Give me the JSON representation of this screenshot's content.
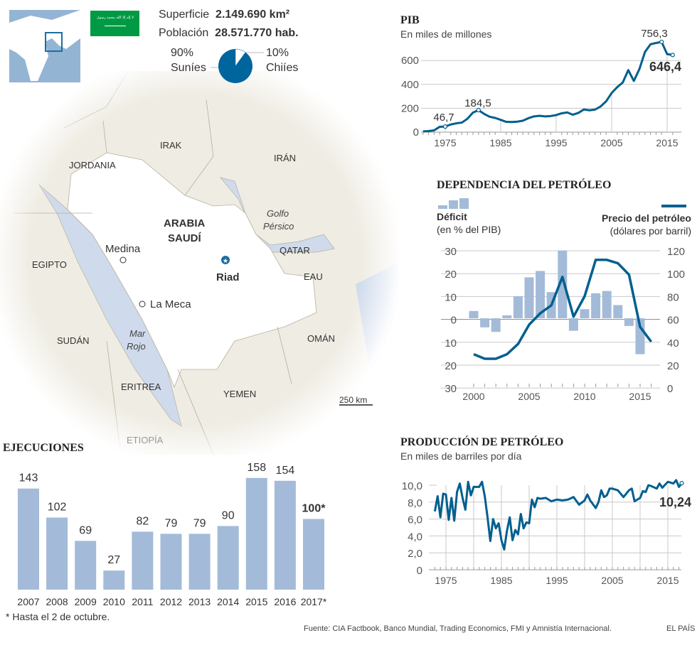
{
  "facts": {
    "area_label": "Superficie",
    "area_value": "2.149.690 km²",
    "population_label": "Población",
    "population_value": "28.571.770 hab.",
    "sunni_pct": "90%",
    "sunni_label": "Suníes",
    "shia_pct": "10%",
    "shia_label": "Chiíes",
    "religion_split": {
      "sunni": 90,
      "shia": 10
    }
  },
  "flag": {
    "color": "#009a44",
    "inscription": "لا إله إلا الله محمد رسول الله"
  },
  "map": {
    "country": "ARABIA\nSAUDÍ",
    "country_line1": "ARABIA",
    "country_line2": "SAUDÍ",
    "capital": "Riad",
    "cities": [
      "Medina",
      "La Meca"
    ],
    "countries": [
      "IRAK",
      "IRÁN",
      "JORDANIA",
      "EGIPTO",
      "QATAR",
      "EAU",
      "SUDÁN",
      "OMÁN",
      "ERITREA",
      "YEMEN",
      "ETIOPÍA"
    ],
    "seas": {
      "gulf1": "Golfo",
      "gulf2": "Pérsico",
      "red1": "Mar",
      "red2": "Rojo"
    },
    "scale": "250 km",
    "colors": {
      "land": "#efece3",
      "country": "#ffffff",
      "water": "#cfdbec",
      "capital": "#1a6fa3"
    }
  },
  "chart_data": [
    {
      "type": "line",
      "title": "PIB",
      "subtitle": "En miles de millones",
      "x": [
        1971,
        1972,
        1973,
        1974,
        1975,
        1976,
        1977,
        1978,
        1979,
        1980,
        1981,
        1982,
        1983,
        1984,
        1985,
        1986,
        1987,
        1988,
        1989,
        1990,
        1991,
        1992,
        1993,
        1994,
        1995,
        1996,
        1997,
        1998,
        1999,
        2000,
        2001,
        2002,
        2003,
        2004,
        2005,
        2006,
        2007,
        2008,
        2009,
        2010,
        2011,
        2012,
        2013,
        2014,
        2015,
        2016
      ],
      "values": [
        7,
        9,
        15,
        45,
        46.7,
        64,
        74,
        80,
        112,
        164,
        184.5,
        153,
        129,
        119,
        103,
        86,
        85,
        88,
        96,
        117,
        132,
        137,
        132,
        135,
        143,
        158,
        165,
        146,
        161,
        190,
        183,
        189,
        215,
        258,
        328,
        377,
        416,
        520,
        429,
        528,
        671,
        736,
        747,
        756.3,
        654,
        646.4
      ],
      "yticks": [
        "0",
        "200",
        "400",
        "600"
      ],
      "xticks": [
        "1975",
        "1985",
        "1995",
        "2005",
        "2015"
      ],
      "ylim": [
        0,
        780
      ],
      "annotations": [
        "46,7",
        "184,5",
        "756,3",
        "646,4"
      ],
      "color": "#005f8f"
    },
    {
      "type": "bar+line",
      "title": "DEPENDENCIA DEL PETRÓLEO",
      "bar_series": {
        "name": "Déficit",
        "unit": "(en % del PIB)",
        "color": "#a3bbd8",
        "x": [
          2000,
          2001,
          2002,
          2003,
          2004,
          2005,
          2006,
          2007,
          2008,
          2009,
          2010,
          2011,
          2012,
          2013,
          2014,
          2015
        ],
        "values": [
          3.2,
          -4,
          -6,
          1.3,
          9.7,
          18,
          20.8,
          11.5,
          29.8,
          -5.5,
          4,
          11,
          12,
          5.8,
          -3.4,
          -15.8
        ]
      },
      "line_series": {
        "name": "Precio del petróleo",
        "unit": "(dólares por barril)",
        "color": "#005f8f",
        "x": [
          2000,
          2001,
          2002,
          2003,
          2004,
          2005,
          2006,
          2007,
          2008,
          2009,
          2010,
          2011,
          2012,
          2013,
          2014,
          2015,
          2016
        ],
        "values": [
          29,
          25,
          25,
          29,
          38,
          55,
          65,
          72,
          97,
          62,
          80,
          112,
          112,
          109,
          99,
          53,
          40
        ]
      },
      "yticks_left": [
        "30",
        "20",
        "10",
        "0",
        "10",
        "20",
        "30"
      ],
      "yticks_right": [
        "120",
        "100",
        "80",
        "60",
        "40",
        "20",
        "0"
      ],
      "ylim_left": [
        -30,
        30
      ],
      "ylim_right": [
        0,
        120
      ],
      "xticks": [
        "2000",
        "2005",
        "2010",
        "2015"
      ]
    },
    {
      "type": "line",
      "title": "PRODUCCIÓN DE PETRÓLEO",
      "subtitle": "En miles de barriles por día",
      "x": [
        1973,
        1973.5,
        1974,
        1974.5,
        1975,
        1975.5,
        1976,
        1976.5,
        1977,
        1977.5,
        1978,
        1978.5,
        1979,
        1979.5,
        1980,
        1981,
        1981.5,
        1982,
        1982.5,
        1983,
        1983.5,
        1984,
        1984.5,
        1985,
        1985.5,
        1986,
        1986.5,
        1987,
        1987.5,
        1988,
        1988.5,
        1989,
        1989.5,
        1990,
        1990.5,
        1991,
        1991.5,
        1992,
        1993,
        1994,
        1995,
        1996,
        1997,
        1998,
        1999,
        2000,
        2000.5,
        2001,
        2002,
        2002.5,
        2003,
        2003.5,
        2004,
        2004.5,
        2005,
        2006,
        2007,
        2008,
        2008.5,
        2009,
        2010,
        2010.5,
        2011,
        2011.5,
        2012,
        2013,
        2013.5,
        2014,
        2015,
        2016,
        2016.5,
        2017,
        2017.5
      ],
      "values": [
        6.9,
        8.7,
        6.2,
        9,
        8.9,
        5.9,
        8.5,
        5.8,
        9.2,
        10.2,
        8.5,
        7.1,
        10.4,
        8.8,
        9.8,
        9.8,
        10.4,
        8.7,
        6.2,
        3.4,
        6,
        4.9,
        5.5,
        3.5,
        2.4,
        4.6,
        6.2,
        3.5,
        4.7,
        4.2,
        6.6,
        4.9,
        5.6,
        5.5,
        8.3,
        7.4,
        8.5,
        8.4,
        8.5,
        8.1,
        8.3,
        8.2,
        8.3,
        8.6,
        7.7,
        8.2,
        8.9,
        8.2,
        7.3,
        8,
        9.4,
        8.6,
        8.8,
        9.6,
        9.6,
        9.4,
        8.6,
        9.4,
        9.6,
        8.1,
        8.5,
        9.3,
        9.2,
        10,
        9.9,
        9.6,
        10.2,
        9.7,
        10.4,
        10.2,
        10.6,
        9.8,
        10.24
      ],
      "yticks": [
        "0",
        "2,0",
        "4,0",
        "6,0",
        "8,0",
        "10,0"
      ],
      "xticks": [
        "1975",
        "1985",
        "1995",
        "2005",
        "2015"
      ],
      "ylim": [
        0,
        11
      ],
      "annotation": "10,24",
      "color": "#005f8f"
    },
    {
      "type": "bar",
      "title": "EJECUCIONES",
      "categories": [
        "2007",
        "2008",
        "2009",
        "2010",
        "2011",
        "2012",
        "2013",
        "2014",
        "2015",
        "2016",
        "2017*"
      ],
      "values": [
        143,
        102,
        69,
        27,
        82,
        79,
        79,
        90,
        158,
        154,
        100
      ],
      "labels": [
        "143",
        "102",
        "69",
        "27",
        "82",
        "79",
        "79",
        "90",
        "158",
        "154",
        "100*"
      ],
      "footnote": "* Hasta el 2 de octubre.",
      "color": "#a3bbd8"
    }
  ],
  "footer": {
    "source": "Fuente: CIA Factbook, Banco Mundial, Trading Economics, FMI y Amnistía Internacional.",
    "brand": "EL PAÍS"
  }
}
